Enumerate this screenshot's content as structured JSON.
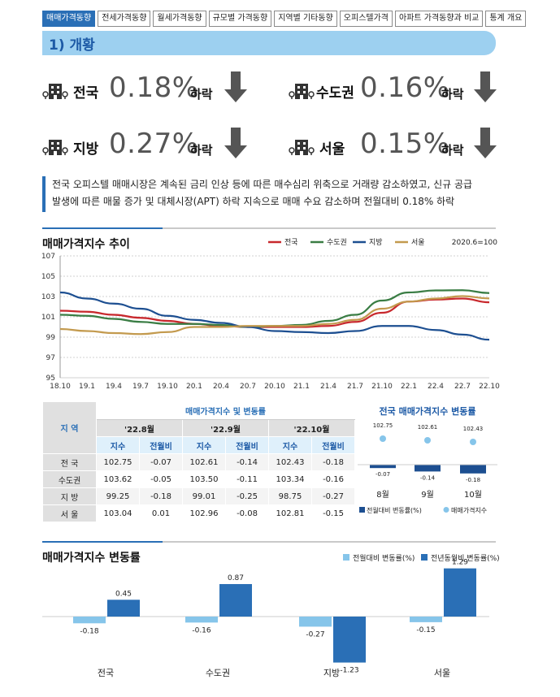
{
  "tabs": [
    "매매가격동향",
    "전세가격동향",
    "월세가격동향",
    "규모별 가격동향",
    "지역별 기타동향",
    "오피스텔가격",
    "아파트 가격동향과 비교",
    "통계 개요"
  ],
  "section_title": "1) 개황",
  "kpis": [
    {
      "region": "전국",
      "pct": "0.18%",
      "dir": "하락"
    },
    {
      "region": "수도권",
      "pct": "0.16%",
      "dir": "하락"
    },
    {
      "region": "지방",
      "pct": "0.27%",
      "dir": "하락"
    },
    {
      "region": "서울",
      "pct": "0.15%",
      "dir": "하락"
    }
  ],
  "note_lines": [
    "전국 오피스텔 매매시장은 계속된 금리 인상 등에 따른 매수심리 위축으로 거래량 감소하였고, 신규 공급",
    "발생에 따른 매물 증가 및 대체시장(APT) 하락 지속으로 매매 수요 감소하며 전월대비 0.18% 하락"
  ],
  "colors": {
    "accent": "#2a6fb6",
    "전국": "#c8282d",
    "수도권": "#3a7d44",
    "지방": "#1d4f91",
    "서울": "#c39a4e",
    "mom": "#86c5ea",
    "yoy": "#2a6fb6"
  },
  "chart_data": [
    {
      "type": "line",
      "title": "매매가격지수 추이",
      "note": "2020.6=100",
      "xticks": [
        "18.10",
        "19.1",
        "19.4",
        "19.7",
        "19.10",
        "20.1",
        "20.4",
        "20.7",
        "20.10",
        "21.1",
        "21.4",
        "21.7",
        "21.10",
        "22.1",
        "22.4",
        "22.7",
        "22.10"
      ],
      "ylim": [
        95,
        107
      ],
      "yticks": [
        95,
        97,
        99,
        101,
        103,
        105,
        107
      ],
      "series": [
        {
          "name": "전국",
          "values": [
            101.6,
            101.5,
            101.2,
            100.9,
            100.6,
            100.3,
            100.1,
            100.0,
            100.0,
            100.0,
            100.1,
            100.5,
            101.4,
            102.5,
            102.7,
            102.8,
            102.43
          ]
        },
        {
          "name": "수도권",
          "values": [
            101.2,
            101.1,
            100.8,
            100.5,
            100.3,
            100.3,
            100.2,
            100.0,
            100.1,
            100.2,
            100.6,
            101.2,
            102.6,
            103.4,
            103.6,
            103.62,
            103.34
          ]
        },
        {
          "name": "지방",
          "values": [
            103.4,
            102.8,
            102.3,
            101.8,
            101.1,
            100.7,
            100.4,
            100.0,
            99.6,
            99.5,
            99.4,
            99.6,
            100.1,
            100.1,
            99.7,
            99.25,
            98.75
          ]
        },
        {
          "name": "서울",
          "values": [
            99.8,
            99.6,
            99.4,
            99.3,
            99.5,
            100.0,
            100.0,
            100.1,
            100.1,
            100.1,
            100.3,
            100.7,
            101.8,
            102.5,
            102.8,
            103.04,
            102.81
          ]
        }
      ]
    },
    {
      "type": "bar",
      "title": "전국 매매가격지수 변동률",
      "categories": [
        "8월",
        "9월",
        "10월"
      ],
      "series": [
        {
          "name": "전월대비 변동률(%)",
          "values": [
            -0.07,
            -0.14,
            -0.18
          ]
        },
        {
          "name": "매매가격지수",
          "values": [
            102.75,
            102.61,
            102.43
          ]
        }
      ]
    },
    {
      "type": "bar",
      "title": "매매가격지수 변동률",
      "categories": [
        "전국",
        "수도권",
        "지방",
        "서울"
      ],
      "series": [
        {
          "name": "전월대비 변동률(%)",
          "values": [
            -0.18,
            -0.16,
            -0.27,
            -0.15
          ]
        },
        {
          "name": "전년동월비 변동률(%)",
          "values": [
            0.45,
            0.87,
            -1.23,
            1.29
          ]
        }
      ]
    }
  ],
  "table": {
    "title": "매매가격지수 및 변동률",
    "region_header": "지 역",
    "months": [
      "'22.8월",
      "'22.9월",
      "'22.10월"
    ],
    "sub": [
      "지수",
      "전월비"
    ],
    "rows": [
      {
        "region": "전  국",
        "v": [
          "102.75",
          "-0.07",
          "102.61",
          "-0.14",
          "102.43",
          "-0.18"
        ]
      },
      {
        "region": "수도권",
        "v": [
          "103.62",
          "-0.05",
          "103.50",
          "-0.11",
          "103.34",
          "-0.16"
        ]
      },
      {
        "region": "지  방",
        "v": [
          "99.25",
          "-0.18",
          "99.01",
          "-0.25",
          "98.75",
          "-0.27"
        ]
      },
      {
        "region": "서  울",
        "v": [
          "103.04",
          "0.01",
          "102.96",
          "-0.08",
          "102.81",
          "-0.15"
        ]
      }
    ]
  }
}
